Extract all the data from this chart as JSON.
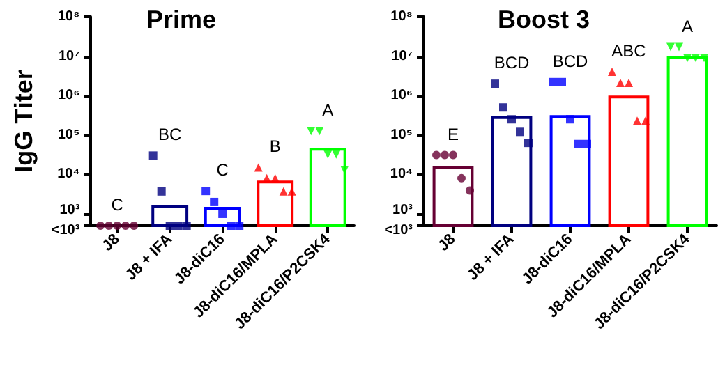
{
  "chart_data": [
    {
      "type": "bar",
      "title": "Prime",
      "ylabel": "IgG Titer",
      "log": "y",
      "grid": false,
      "categories": [
        "J8",
        "J8 + IFA",
        "J8-diC16",
        "J8-diC16/MPLA",
        "J8-diC16/P2CSK4"
      ],
      "ylim": [
        500,
        100000000
      ],
      "yticks": [
        {
          "value": 500,
          "label": "<10³"
        },
        {
          "value": 1000,
          "label": "10³"
        },
        {
          "value": 10000,
          "label": "10⁴"
        },
        {
          "value": 100000,
          "label": "10⁵"
        },
        {
          "value": 1000000,
          "label": "10⁶"
        },
        {
          "value": 10000000,
          "label": "10⁷"
        },
        {
          "value": 100000000,
          "label": "10⁸"
        }
      ],
      "series": [
        {
          "colors": [
            "#660033",
            "#000080",
            "#0000ff",
            "#ff0000",
            "#00ff00"
          ],
          "values": [
            500,
            1700,
            1500,
            7000,
            47000
          ]
        },
        {
          "type": "scatter",
          "color": "#660033",
          "marker": "circle",
          "x": [
            "J8",
            "J8",
            "J8",
            "J8",
            "J8"
          ],
          "values": [
            500,
            500,
            500,
            500,
            500
          ]
        },
        {
          "type": "scatter",
          "color": "#000080",
          "marker": "square",
          "x": [
            "J8 + IFA",
            "J8 + IFA",
            "J8 + IFA",
            "J8 + IFA",
            "J8 + IFA"
          ],
          "values": [
            30000,
            3700,
            500,
            500,
            500
          ]
        },
        {
          "type": "scatter",
          "color": "#0000ff",
          "marker": "square",
          "x": [
            "J8-diC16",
            "J8-diC16",
            "J8-diC16",
            "J8-diC16",
            "J8-diC16"
          ],
          "values": [
            3800,
            2000,
            1000,
            500,
            500
          ]
        },
        {
          "type": "scatter",
          "color": "#ff0000",
          "marker": "triangle",
          "x": [
            "J8-diC16/MPLA",
            "J8-diC16/MPLA",
            "J8-diC16/MPLA",
            "J8-diC16/MPLA",
            "J8-diC16/MPLA"
          ],
          "values": [
            15000,
            8000,
            8000,
            3700,
            3700
          ]
        },
        {
          "type": "scatter",
          "color": "#00ff00",
          "marker": "triangle-down",
          "x": [
            "J8-diC16/P2CSK4",
            "J8-diC16/P2CSK4",
            "J8-diC16/P2CSK4",
            "J8-diC16/P2CSK4",
            "J8-diC16/P2CSK4"
          ],
          "values": [
            125000,
            125000,
            32000,
            32000,
            13000
          ]
        }
      ],
      "annotations": [
        "C",
        "BC",
        "C",
        "B",
        "A"
      ]
    },
    {
      "type": "bar",
      "title": "Boost 3",
      "log": "y",
      "grid": false,
      "categories": [
        "J8",
        "J8 + IFA",
        "J8-diC16",
        "J8-diC16/MPLA",
        "J8-diC16/P2CSK4"
      ],
      "ylim": [
        500,
        100000000
      ],
      "yticks": [
        {
          "value": 500,
          "label": "<10³"
        },
        {
          "value": 1000,
          "label": "10³"
        },
        {
          "value": 10000,
          "label": "10⁴"
        },
        {
          "value": 100000,
          "label": "10⁵"
        },
        {
          "value": 1000000,
          "label": "10⁶"
        },
        {
          "value": 10000000,
          "label": "10⁷"
        },
        {
          "value": 100000000,
          "label": "10⁸"
        }
      ],
      "series": [
        {
          "colors": [
            "#660033",
            "#000080",
            "#0000ff",
            "#ff0000",
            "#00ff00"
          ],
          "values": [
            16000,
            300000,
            320000,
            1000000,
            10000000
          ]
        },
        {
          "type": "scatter",
          "color": "#660033",
          "marker": "circle",
          "x": [
            "J8",
            "J8",
            "J8",
            "J8",
            "J8"
          ],
          "values": [
            31000,
            31000,
            31000,
            8000,
            3900
          ]
        },
        {
          "type": "scatter",
          "color": "#000080",
          "marker": "square",
          "x": [
            "J8 + IFA",
            "J8 + IFA",
            "J8 + IFA",
            "J8 + IFA",
            "J8 + IFA"
          ],
          "values": [
            2000000,
            500000,
            250000,
            120000,
            63000
          ]
        },
        {
          "type": "scatter",
          "color": "#0000ff",
          "marker": "square",
          "x": [
            "J8-diC16",
            "J8-diC16",
            "J8-diC16",
            "J8-diC16",
            "J8-diC16"
          ],
          "values": [
            2200000,
            2200000,
            250000,
            59000,
            59000
          ]
        },
        {
          "type": "scatter",
          "color": "#ff0000",
          "marker": "triangle",
          "x": [
            "J8-diC16/MPLA",
            "J8-diC16/MPLA",
            "J8-diC16/MPLA",
            "J8-diC16/MPLA",
            "J8-diC16/MPLA"
          ],
          "values": [
            4000000,
            2100000,
            2100000,
            230000,
            230000
          ]
        },
        {
          "type": "scatter",
          "color": "#00ff00",
          "marker": "triangle-down",
          "x": [
            "J8-diC16/P2CSK4",
            "J8-diC16/P2CSK4",
            "J8-diC16/P2CSK4",
            "J8-diC16/P2CSK4",
            "J8-diC16/P2CSK4"
          ],
          "values": [
            17000000,
            17000000,
            9000000,
            9000000,
            9000000
          ]
        }
      ],
      "annotations": [
        "E",
        "BCD",
        "BCD",
        "ABC",
        "A"
      ]
    }
  ]
}
